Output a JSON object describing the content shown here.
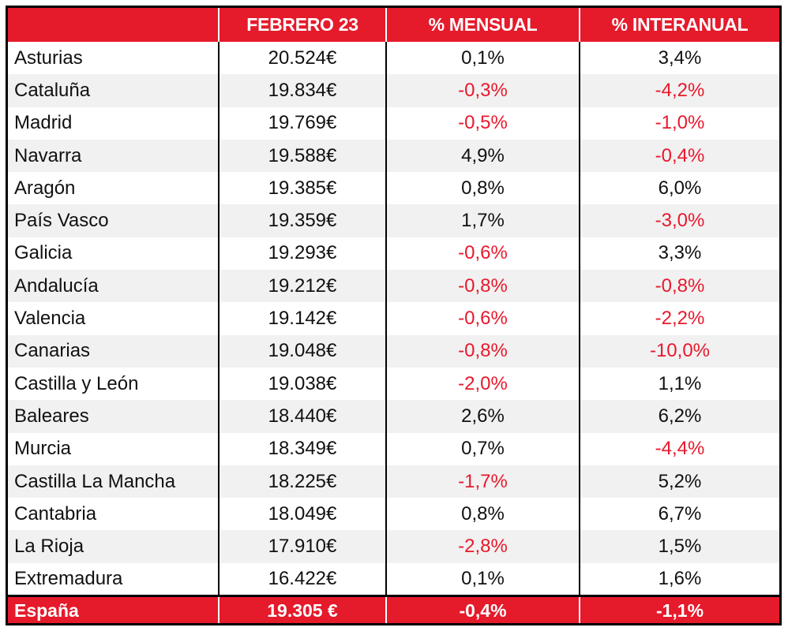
{
  "colors": {
    "header_bg": "#e51a2b",
    "negative_text": "#e8192c",
    "stripe": "#f1f1f1"
  },
  "chart_data": {
    "type": "table",
    "columns": [
      "",
      "FEBRERO 23",
      "% MENSUAL",
      "% INTERANUAL"
    ],
    "rows": [
      {
        "region": "Asturias",
        "value": "20.524€",
        "monthly": "0,1%",
        "yearly": "3,4%"
      },
      {
        "region": "Cataluña",
        "value": "19.834€",
        "monthly": "-0,3%",
        "yearly": "-4,2%"
      },
      {
        "region": "Madrid",
        "value": "19.769€",
        "monthly": "-0,5%",
        "yearly": "-1,0%"
      },
      {
        "region": "Navarra",
        "value": "19.588€",
        "monthly": "4,9%",
        "yearly": "-0,4%"
      },
      {
        "region": "Aragón",
        "value": "19.385€",
        "monthly": "0,8%",
        "yearly": "6,0%"
      },
      {
        "region": "País Vasco",
        "value": "19.359€",
        "monthly": "1,7%",
        "yearly": "-3,0%"
      },
      {
        "region": "Galicia",
        "value": "19.293€",
        "monthly": "-0,6%",
        "yearly": "3,3%"
      },
      {
        "region": "Andalucía",
        "value": "19.212€",
        "monthly": "-0,8%",
        "yearly": "-0,8%"
      },
      {
        "region": "Valencia",
        "value": "19.142€",
        "monthly": "-0,6%",
        "yearly": "-2,2%"
      },
      {
        "region": "Canarias",
        "value": "19.048€",
        "monthly": "-0,8%",
        "yearly": "-10,0%"
      },
      {
        "region": "Castilla y León",
        "value": "19.038€",
        "monthly": "-2,0%",
        "yearly": "1,1%"
      },
      {
        "region": "Baleares",
        "value": "18.440€",
        "monthly": "2,6%",
        "yearly": "6,2%"
      },
      {
        "region": "Murcia",
        "value": "18.349€",
        "monthly": "0,7%",
        "yearly": "-4,4%"
      },
      {
        "region": "Castilla La Mancha",
        "value": "18.225€",
        "monthly": "-1,7%",
        "yearly": "5,2%"
      },
      {
        "region": "Cantabria",
        "value": "18.049€",
        "monthly": "0,8%",
        "yearly": "6,7%"
      },
      {
        "region": "La Rioja",
        "value": "17.910€",
        "monthly": "-2,8%",
        "yearly": "1,5%"
      },
      {
        "region": "Extremadura",
        "value": "16.422€",
        "monthly": "0,1%",
        "yearly": "1,6%"
      }
    ],
    "total": {
      "region": "España",
      "value": "19.305 €",
      "monthly": "-0,4%",
      "yearly": "-1,1%"
    }
  }
}
